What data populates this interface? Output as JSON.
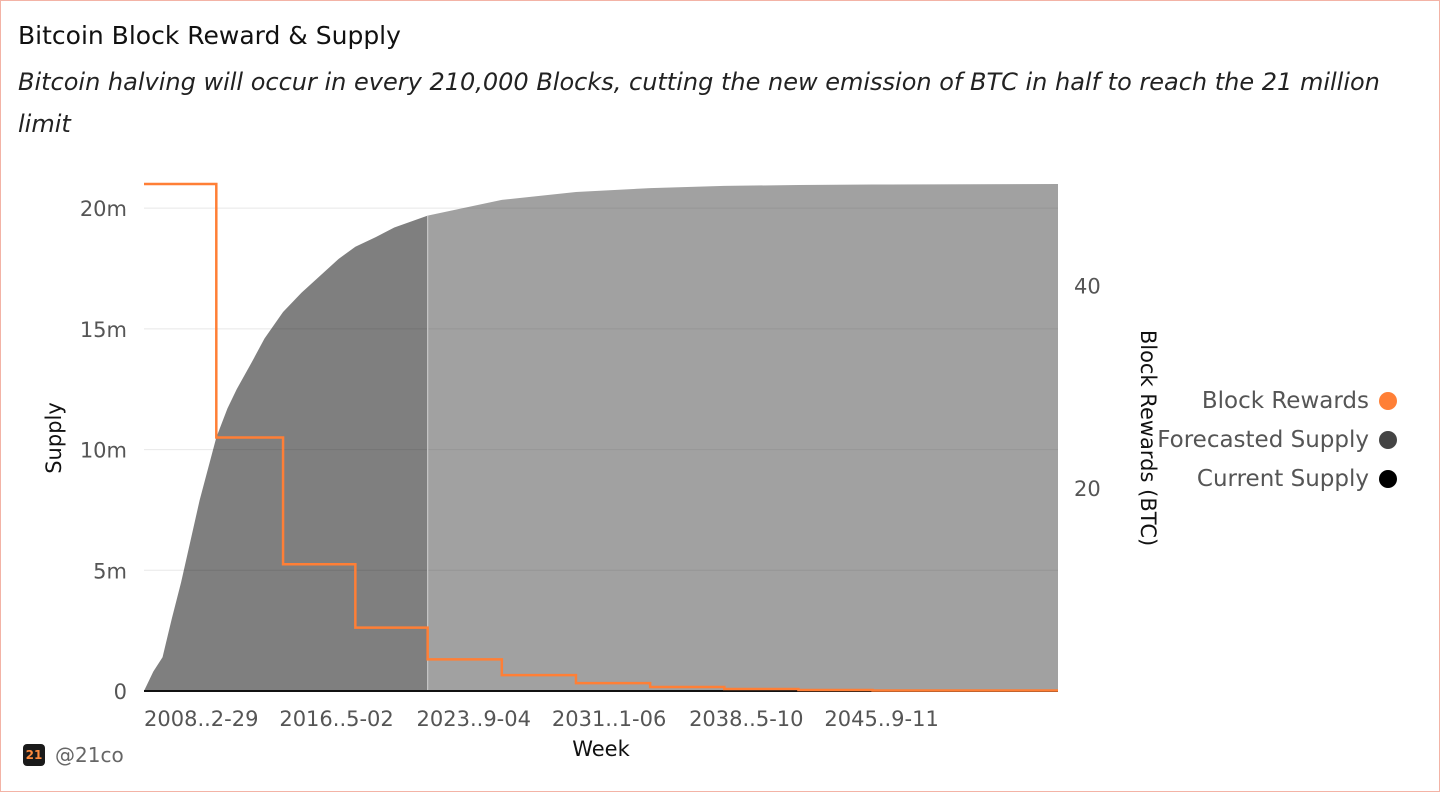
{
  "header": {
    "title": "Bitcoin Block Reward & Supply",
    "subtitle": "Bitcoin halving will occur in every 210,000 Blocks, cutting the new emission of BTC in half to reach the 21 million limit"
  },
  "footer": {
    "logo_text": "21",
    "handle": "@21co"
  },
  "chart_data": {
    "type": "area",
    "xlabel": "Week",
    "ylabel": "Supply",
    "y2label": "Block Rewards (BTC)",
    "x_range": [
      2009.0,
      2058.3
    ],
    "ylim": [
      0,
      21000000
    ],
    "y2lim": [
      0,
      50
    ],
    "x_ticks": [
      {
        "year": 2009.0,
        "label": "2008..2-29"
      },
      {
        "year": 2016.3,
        "label": "2016..5-02"
      },
      {
        "year": 2023.7,
        "label": "2023..9-04"
      },
      {
        "year": 2031.0,
        "label": "2031..1-06"
      },
      {
        "year": 2038.4,
        "label": "2038..5-10"
      },
      {
        "year": 2045.7,
        "label": "2045..9-11"
      }
    ],
    "y_ticks": [
      {
        "value": 0,
        "label": "0"
      },
      {
        "value": 5000000,
        "label": "5m"
      },
      {
        "value": 10000000,
        "label": "10m"
      },
      {
        "value": 15000000,
        "label": "15m"
      },
      {
        "value": 20000000,
        "label": "20m"
      }
    ],
    "y2_ticks": [
      {
        "value": 20,
        "label": "20"
      },
      {
        "value": 40,
        "label": "40"
      }
    ],
    "legend_position": "right",
    "series": [
      {
        "name": "Block Rewards",
        "color": "#ff7f36",
        "kind": "step",
        "points": [
          [
            2009.0,
            50
          ],
          [
            2012.9,
            50
          ],
          [
            2012.9,
            25
          ],
          [
            2016.5,
            25
          ],
          [
            2016.5,
            12.5
          ],
          [
            2020.4,
            12.5
          ],
          [
            2020.4,
            6.25
          ],
          [
            2024.3,
            6.25
          ],
          [
            2024.3,
            3.125
          ],
          [
            2028.3,
            3.125
          ],
          [
            2028.3,
            1.5625
          ],
          [
            2032.3,
            1.5625
          ],
          [
            2032.3,
            0.78
          ],
          [
            2036.3,
            0.78
          ],
          [
            2036.3,
            0.39
          ],
          [
            2040.3,
            0.39
          ],
          [
            2040.3,
            0.2
          ],
          [
            2044.3,
            0.2
          ],
          [
            2044.3,
            0.1
          ],
          [
            2048.3,
            0.1
          ],
          [
            2048.3,
            0.05
          ],
          [
            2058.3,
            0.05
          ]
        ]
      },
      {
        "name": "Forecasted Supply",
        "color": "#444444",
        "kind": "area",
        "points": [
          [
            2024.3,
            19690000
          ],
          [
            2028.3,
            20340000
          ],
          [
            2032.3,
            20670000
          ],
          [
            2036.3,
            20830000
          ],
          [
            2040.3,
            20920000
          ],
          [
            2044.3,
            20960000
          ],
          [
            2048.3,
            20980000
          ],
          [
            2058.3,
            21000000
          ]
        ]
      },
      {
        "name": "Current Supply",
        "color": "#000000",
        "kind": "area",
        "points": [
          [
            2009.0,
            0
          ],
          [
            2009.5,
            800000
          ],
          [
            2010.0,
            1400000
          ],
          [
            2010.5,
            3000000
          ],
          [
            2011.0,
            4500000
          ],
          [
            2011.5,
            6200000
          ],
          [
            2012.0,
            7900000
          ],
          [
            2012.9,
            10500000
          ],
          [
            2013.5,
            11700000
          ],
          [
            2014.0,
            12500000
          ],
          [
            2014.8,
            13600000
          ],
          [
            2015.5,
            14600000
          ],
          [
            2016.5,
            15700000
          ],
          [
            2017.5,
            16500000
          ],
          [
            2018.5,
            17200000
          ],
          [
            2019.5,
            17900000
          ],
          [
            2020.4,
            18400000
          ],
          [
            2021.5,
            18800000
          ],
          [
            2022.5,
            19200000
          ],
          [
            2024.3,
            19690000
          ]
        ]
      }
    ]
  }
}
